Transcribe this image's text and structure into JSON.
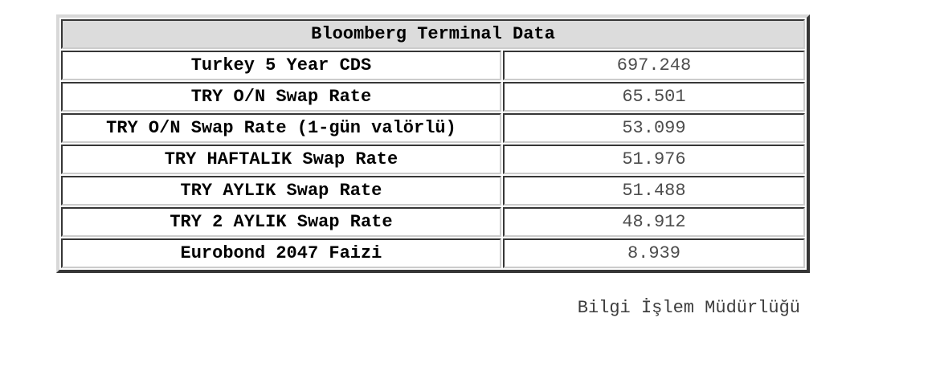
{
  "table": {
    "title": "Bloomberg Terminal Data",
    "rows": [
      {
        "label": "Turkey 5 Year CDS",
        "value": "697.248"
      },
      {
        "label": "TRY O/N Swap Rate",
        "value": "65.501"
      },
      {
        "label": "TRY O/N Swap Rate (1-gün valörlü)",
        "value": "53.099"
      },
      {
        "label": "TRY HAFTALIK Swap Rate",
        "value": "51.976"
      },
      {
        "label": "TRY AYLIK Swap Rate",
        "value": "51.488"
      },
      {
        "label": "TRY 2 AYLIK Swap Rate",
        "value": "48.912"
      },
      {
        "label": "Eurobond 2047 Faizi",
        "value": "8.939"
      }
    ]
  },
  "page": {
    "footer": "Bilgi İşlem Müdürlüğü"
  },
  "colors": {
    "header_bg": "#dcdcdc",
    "border_dark": "#363636",
    "border_light": "#d8d8d8",
    "cell_border_light": "#cccccc",
    "value_text": "#4d4d4d",
    "footer_text": "#3d3d3d"
  }
}
